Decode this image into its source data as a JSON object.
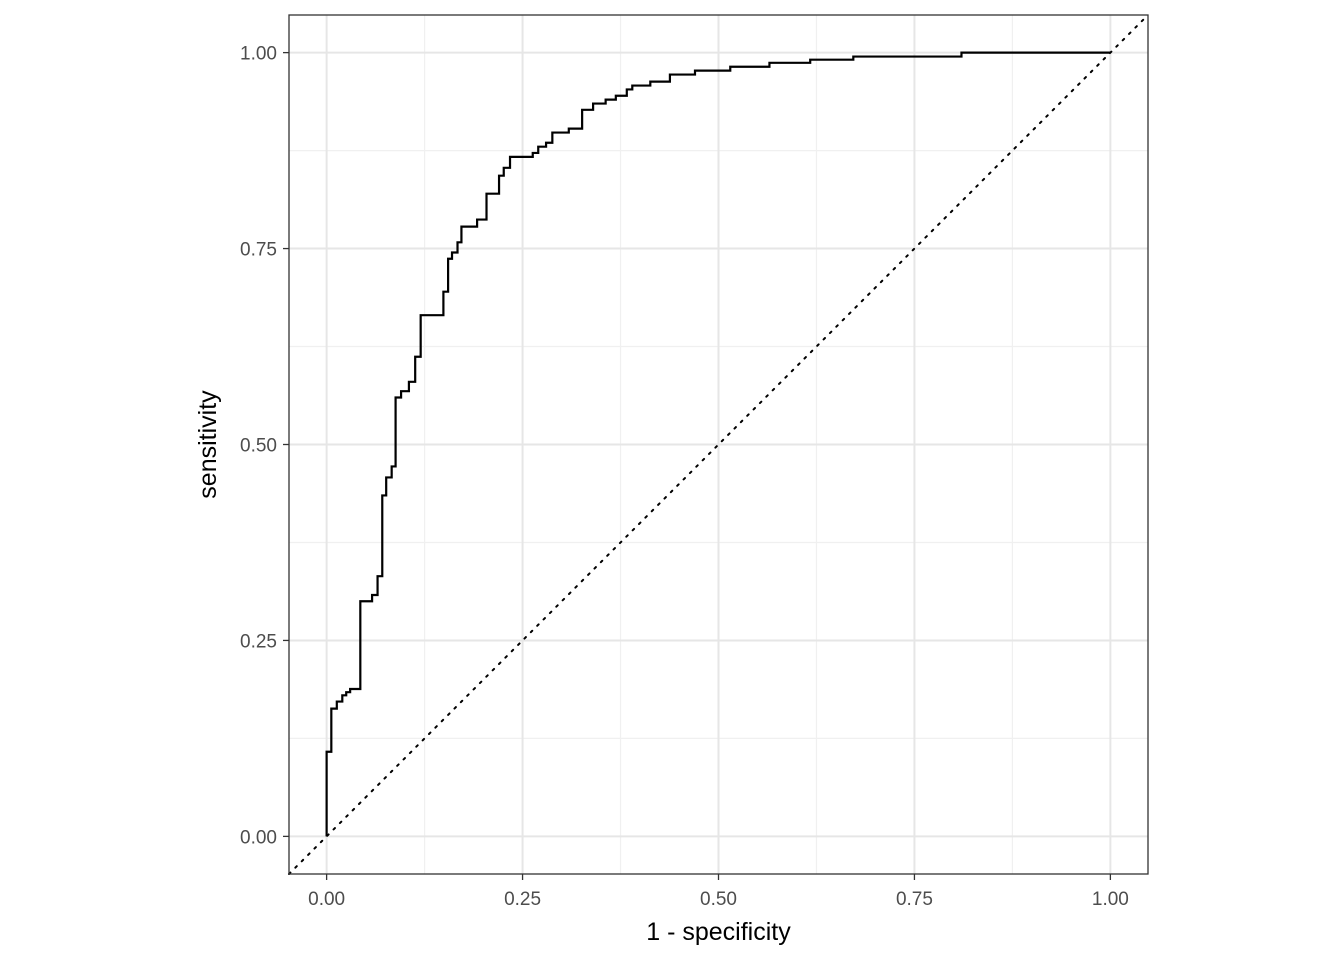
{
  "chart_data": {
    "type": "line",
    "xlabel": "1 - specificity",
    "ylabel": "sensitivity",
    "xlim": [
      -0.048,
      1.048
    ],
    "ylim": [
      -0.048,
      1.048
    ],
    "x_ticks": [
      "0.00",
      "0.25",
      "0.50",
      "0.75",
      "1.00"
    ],
    "y_ticks": [
      "0.00",
      "0.25",
      "0.50",
      "0.75",
      "1.00"
    ],
    "grid": true,
    "theme": "black-and-white panel, light grey gridlines",
    "diagonal_reference": {
      "from": [
        0,
        0
      ],
      "to": [
        1,
        1
      ],
      "style": "dotted"
    },
    "series": [
      {
        "x": [
          0,
          0,
          0.006,
          0.006,
          0.013,
          0.013,
          0.02,
          0.02,
          0.025,
          0.025,
          0.03,
          0.03,
          0.043,
          0.043,
          0.058,
          0.058,
          0.065,
          0.065,
          0.071,
          0.071,
          0.076,
          0.076,
          0.083,
          0.083,
          0.088,
          0.088,
          0.095,
          0.095,
          0.105,
          0.105,
          0.113,
          0.113,
          0.12,
          0.12,
          0.149,
          0.149,
          0.155,
          0.155,
          0.16,
          0.16,
          0.167,
          0.167,
          0.172,
          0.172,
          0.192,
          0.192,
          0.204,
          0.204,
          0.22,
          0.22,
          0.226,
          0.226,
          0.234,
          0.234,
          0.263,
          0.263,
          0.27,
          0.27,
          0.28,
          0.28,
          0.288,
          0.288,
          0.309,
          0.309,
          0.326,
          0.326,
          0.34,
          0.34,
          0.356,
          0.356,
          0.369,
          0.369,
          0.383,
          0.383,
          0.39,
          0.39,
          0.413,
          0.413,
          0.438,
          0.438,
          0.47,
          0.47,
          0.515,
          0.515,
          0.565,
          0.565,
          0.617,
          0.617,
          0.672,
          0.672,
          0.81,
          0.81,
          1.0
        ],
        "y": [
          0,
          0.108,
          0.108,
          0.163,
          0.163,
          0.172,
          0.172,
          0.18,
          0.18,
          0.184,
          0.184,
          0.188,
          0.188,
          0.3,
          0.3,
          0.308,
          0.308,
          0.332,
          0.332,
          0.435,
          0.435,
          0.458,
          0.458,
          0.472,
          0.472,
          0.56,
          0.56,
          0.568,
          0.568,
          0.58,
          0.58,
          0.612,
          0.612,
          0.665,
          0.665,
          0.695,
          0.695,
          0.737,
          0.737,
          0.745,
          0.745,
          0.758,
          0.758,
          0.778,
          0.778,
          0.787,
          0.787,
          0.82,
          0.82,
          0.843,
          0.843,
          0.853,
          0.853,
          0.867,
          0.867,
          0.872,
          0.872,
          0.88,
          0.88,
          0.885,
          0.885,
          0.898,
          0.898,
          0.903,
          0.903,
          0.927,
          0.927,
          0.935,
          0.935,
          0.94,
          0.94,
          0.945,
          0.945,
          0.953,
          0.953,
          0.958,
          0.958,
          0.963,
          0.963,
          0.972,
          0.972,
          0.977,
          0.977,
          0.982,
          0.982,
          0.987,
          0.987,
          0.991,
          0.991,
          0.995,
          0.995,
          1.0,
          1.0
        ]
      }
    ]
  },
  "colors": {
    "curve": "#000000",
    "grid_major": "#e6e6e6",
    "grid_minor": "#f0f0f0",
    "panel_border": "#333333",
    "tick_text": "#4d4d4d",
    "tick_mark": "#333333"
  }
}
